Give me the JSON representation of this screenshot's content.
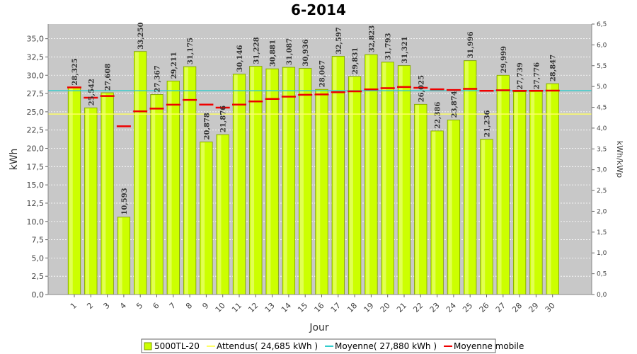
{
  "chart_data": {
    "type": "bar",
    "title": "6-2014",
    "xlabel": "Jour",
    "ylabel": "kWh",
    "y2label": "kWh/kWp",
    "ylim": [
      0,
      37
    ],
    "y2lim": [
      0,
      6.5
    ],
    "yticks": [
      "0,0",
      "2,5",
      "5,0",
      "7,5",
      "10,0",
      "12,5",
      "15,0",
      "17,5",
      "20,0",
      "22,5",
      "25,0",
      "27,5",
      "30,0",
      "32,5",
      "35,0"
    ],
    "y2ticks": [
      "0,0",
      "0,5",
      "1,0",
      "1,5",
      "2,0",
      "2,5",
      "3,0",
      "3,5",
      "4,0",
      "4,5",
      "5,0",
      "5,5",
      "6,0",
      "6,5"
    ],
    "grid": true,
    "legend_position": "bottom",
    "categories": [
      "1",
      "2",
      "3",
      "4",
      "5",
      "6",
      "7",
      "8",
      "9",
      "10",
      "11",
      "12",
      "13",
      "14",
      "15",
      "16",
      "17",
      "18",
      "19",
      "20",
      "21",
      "22",
      "23",
      "24",
      "25",
      "26",
      "27",
      "28",
      "29",
      "30"
    ],
    "series": [
      {
        "name": "5000TL-20",
        "kind": "bar",
        "color": "#ccff00",
        "values": [
          28.325,
          25.542,
          27.608,
          10.593,
          33.25,
          27.367,
          29.211,
          31.175,
          20.878,
          21.876,
          30.146,
          31.228,
          30.881,
          31.087,
          30.936,
          28.067,
          32.597,
          29.831,
          32.823,
          31.793,
          31.321,
          26.025,
          22.386,
          23.874,
          31.996,
          21.236,
          29.999,
          27.739,
          27.776,
          28.847
        ],
        "labels": [
          "28,325",
          "25,542",
          "27,608",
          "10,593",
          "33,250",
          "27,367",
          "29,211",
          "31,175",
          "20,878",
          "21,876",
          "30,146",
          "31,228",
          "30,881",
          "31,087",
          "30,936",
          "28,067",
          "32,597",
          "29,831",
          "32,823",
          "31,793",
          "31,321",
          "26,025",
          "22,386",
          "23,874",
          "31,996",
          "21,236",
          "29,999",
          "27,739",
          "27,776",
          "28,847"
        ]
      },
      {
        "name": "Attendus( 24,685 kWh )",
        "kind": "constant-line",
        "color": "#ffff66",
        "value": 24.685
      },
      {
        "name": "Moyenne( 27,880 kWh )",
        "kind": "constant-line",
        "color": "#33cccc",
        "value": 27.88
      },
      {
        "name": "Moyenne mobile",
        "kind": "step-marks",
        "color": "#ee0000",
        "values": [
          28.33,
          26.93,
          27.16,
          23.02,
          25.06,
          25.44,
          25.97,
          26.62,
          25.98,
          25.57,
          25.98,
          26.42,
          26.76,
          27.07,
          27.33,
          27.37,
          27.68,
          27.8,
          28.06,
          28.24,
          28.39,
          28.28,
          28.08,
          27.98,
          28.14,
          27.87,
          27.94,
          27.87,
          27.87,
          27.9
        ]
      }
    ]
  }
}
